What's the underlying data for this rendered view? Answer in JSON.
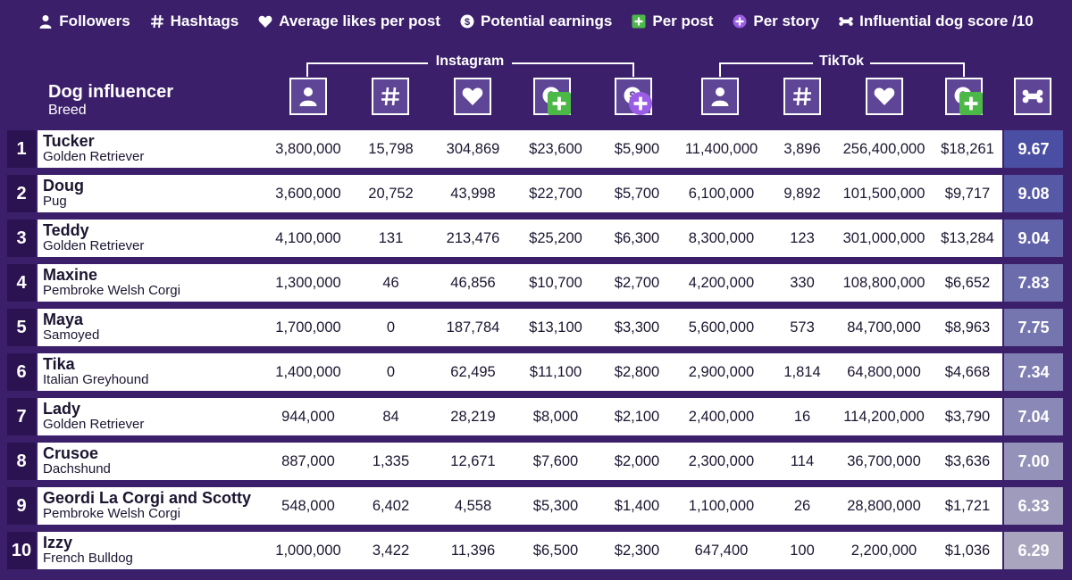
{
  "legend": {
    "followers": "Followers",
    "hashtags": "Hashtags",
    "avg_likes": "Average likes per post",
    "potential_earnings": "Potential earnings",
    "per_post": "Per post",
    "per_story": "Per story",
    "score": "Influential dog score /10"
  },
  "groups": {
    "instagram": "Instagram",
    "tiktok": "TikTok"
  },
  "header": {
    "title": "Dog influencer",
    "subtitle": "Breed"
  },
  "colors": {
    "background": "#3b1f6b",
    "rank_bg": "#2a1350",
    "icon_bg": "#5e4596",
    "per_post_green": "#4cb848",
    "per_story_purple": "#9b5de5",
    "score_high": "#4b4fa3",
    "score_low": "#a9a5bf"
  },
  "chart_data": {
    "type": "table",
    "columns": [
      "Dog influencer",
      "Breed",
      "Instagram Followers",
      "Instagram Hashtags",
      "Instagram Average likes per post",
      "Instagram Potential earnings Per post",
      "Instagram Potential earnings Per story",
      "TikTok Followers",
      "TikTok Hashtags",
      "TikTok Average likes per post",
      "TikTok Potential earnings Per post",
      "Influential dog score /10"
    ],
    "rows": [
      {
        "rank": "1",
        "name": "Tucker",
        "breed": "Golden Retriever",
        "ig_followers": "3,800,000",
        "ig_hashtags": "15,798",
        "ig_likes": "304,869",
        "ig_per_post": "$23,600",
        "ig_per_story": "$5,900",
        "tt_followers": "11,400,000",
        "tt_hashtags": "3,896",
        "tt_likes": "256,400,000",
        "tt_per_post": "$18,261",
        "score": "9.67"
      },
      {
        "rank": "2",
        "name": "Doug",
        "breed": "Pug",
        "ig_followers": "3,600,000",
        "ig_hashtags": "20,752",
        "ig_likes": "43,998",
        "ig_per_post": "$22,700",
        "ig_per_story": "$5,700",
        "tt_followers": "6,100,000",
        "tt_hashtags": "9,892",
        "tt_likes": "101,500,000",
        "tt_per_post": "$9,717",
        "score": "9.08"
      },
      {
        "rank": "3",
        "name": "Teddy",
        "breed": "Golden Retriever",
        "ig_followers": "4,100,000",
        "ig_hashtags": "131",
        "ig_likes": "213,476",
        "ig_per_post": "$25,200",
        "ig_per_story": "$6,300",
        "tt_followers": "8,300,000",
        "tt_hashtags": "123",
        "tt_likes": "301,000,000",
        "tt_per_post": "$13,284",
        "score": "9.04"
      },
      {
        "rank": "4",
        "name": "Maxine",
        "breed": "Pembroke Welsh Corgi",
        "ig_followers": "1,300,000",
        "ig_hashtags": "46",
        "ig_likes": "46,856",
        "ig_per_post": "$10,700",
        "ig_per_story": "$2,700",
        "tt_followers": "4,200,000",
        "tt_hashtags": "330",
        "tt_likes": "108,800,000",
        "tt_per_post": "$6,652",
        "score": "7.83"
      },
      {
        "rank": "5",
        "name": "Maya",
        "breed": "Samoyed",
        "ig_followers": "1,700,000",
        "ig_hashtags": "0",
        "ig_likes": "187,784",
        "ig_per_post": "$13,100",
        "ig_per_story": "$3,300",
        "tt_followers": "5,600,000",
        "tt_hashtags": "573",
        "tt_likes": "84,700,000",
        "tt_per_post": "$8,963",
        "score": "7.75"
      },
      {
        "rank": "6",
        "name": "Tika",
        "breed": "Italian Greyhound",
        "ig_followers": "1,400,000",
        "ig_hashtags": "0",
        "ig_likes": "62,495",
        "ig_per_post": "$11,100",
        "ig_per_story": "$2,800",
        "tt_followers": "2,900,000",
        "tt_hashtags": "1,814",
        "tt_likes": "64,800,000",
        "tt_per_post": "$4,668",
        "score": "7.34"
      },
      {
        "rank": "7",
        "name": "Lady",
        "breed": "Golden Retriever",
        "ig_followers": "944,000",
        "ig_hashtags": "84",
        "ig_likes": "28,219",
        "ig_per_post": "$8,000",
        "ig_per_story": "$2,100",
        "tt_followers": "2,400,000",
        "tt_hashtags": "16",
        "tt_likes": "114,200,000",
        "tt_per_post": "$3,790",
        "score": "7.04"
      },
      {
        "rank": "8",
        "name": "Crusoe",
        "breed": "Dachshund",
        "ig_followers": "887,000",
        "ig_hashtags": "1,335",
        "ig_likes": "12,671",
        "ig_per_post": "$7,600",
        "ig_per_story": "$2,000",
        "tt_followers": "2,300,000",
        "tt_hashtags": "114",
        "tt_likes": "36,700,000",
        "tt_per_post": "$3,636",
        "score": "7.00"
      },
      {
        "rank": "9",
        "name": "Geordi La Corgi and Scotty",
        "breed": "Pembroke Welsh Corgi",
        "ig_followers": "548,000",
        "ig_hashtags": "6,402",
        "ig_likes": "4,558",
        "ig_per_post": "$5,300",
        "ig_per_story": "$1,400",
        "tt_followers": "1,100,000",
        "tt_hashtags": "26",
        "tt_likes": "28,800,000",
        "tt_per_post": "$1,721",
        "score": "6.33"
      },
      {
        "rank": "10",
        "name": "Izzy",
        "breed": "French Bulldog",
        "ig_followers": "1,000,000",
        "ig_hashtags": "3,422",
        "ig_likes": "11,396",
        "ig_per_post": "$6,500",
        "ig_per_story": "$2,300",
        "tt_followers": "647,400",
        "tt_hashtags": "100",
        "tt_likes": "2,200,000",
        "tt_per_post": "$1,036",
        "score": "6.29"
      }
    ]
  }
}
